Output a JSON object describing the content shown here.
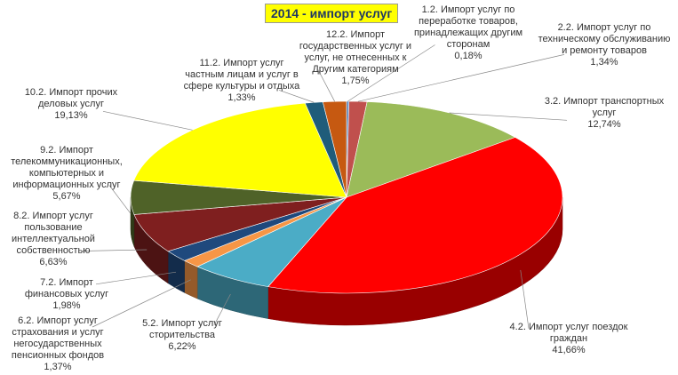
{
  "chart_data": {
    "type": "pie3d",
    "title": "2014 - импорт услуг",
    "categories": [
      "1.2. Импорт услуг по переработке товаров, принадлежащих другим сторонам",
      "2.2. Импорт услуг по техническому обслуживанию и ремонту товаров",
      "3.2. Импорт транспортных услуг",
      "4.2. Импорт услуг поездок граждан",
      "5.2. Импорт услуг сторительства",
      "6.2. Импорт услуг страхования и услуг негосударственных пенсионных фондов",
      "7.2. Импорт финансовых услуг",
      "8.2. Импорт услуг пользование интеллектуальной собственностью",
      "9.2. Импорт телекоммуникационных, компьютерных и информационных услуг",
      "10.2. Импорт прочих деловых услуг",
      "11.2. Импорт услуг частным лицам и услуг в сфере культуры и отдыха",
      "12.2. Импорт государственных услуг и услуг, не отнесенных к Другим категориям"
    ],
    "values": [
      0.18,
      1.34,
      12.74,
      41.66,
      6.22,
      1.37,
      1.98,
      6.63,
      5.67,
      19.13,
      1.33,
      1.75
    ],
    "value_labels": [
      "0,18%",
      "1,34%",
      "12,74%",
      "41,66%",
      "6,22%",
      "1,37%",
      "1,98%",
      "6,63%",
      "5,67%",
      "19,13%",
      "1,33%",
      "1,75%"
    ],
    "colors": [
      "#4f81bd",
      "#c0504d",
      "#9bbb59",
      "#ff0000",
      "#4bacc6",
      "#f79646",
      "#1f497d",
      "#7f1f1f",
      "#4f6228",
      "#ffff00",
      "#1f5c7a",
      "#c65911"
    ]
  }
}
